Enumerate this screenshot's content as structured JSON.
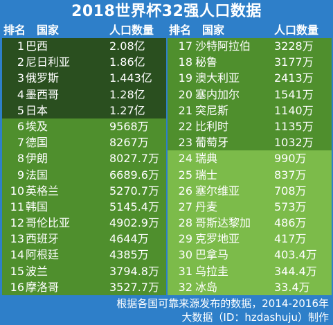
{
  "title": "2018世界杯32强人口数据",
  "headers": {
    "rank": "排名",
    "country": "国家",
    "population": "人口数量"
  },
  "left_rows": [
    {
      "rank": "1",
      "country": "巴西",
      "population": "2.08亿",
      "tier": 1
    },
    {
      "rank": "2",
      "country": "尼日利亚",
      "population": "1.86亿",
      "tier": 1
    },
    {
      "rank": "3",
      "country": "俄罗斯",
      "population": "1.443亿",
      "tier": 1
    },
    {
      "rank": "4",
      "country": "墨西哥",
      "population": "1.28亿",
      "tier": 1
    },
    {
      "rank": "5",
      "country": "日本",
      "population": "1.27亿",
      "tier": 1
    },
    {
      "rank": "6",
      "country": "埃及",
      "population": "9568万",
      "tier": 2
    },
    {
      "rank": "7",
      "country": "德国",
      "population": "8267万",
      "tier": 2
    },
    {
      "rank": "8",
      "country": "伊朗",
      "population": "8027.7万",
      "tier": 2
    },
    {
      "rank": "9",
      "country": "法国",
      "population": "6689.6万",
      "tier": 2
    },
    {
      "rank": "10",
      "country": "英格兰",
      "population": "5270.7万",
      "tier": 2
    },
    {
      "rank": "11",
      "country": "韩国",
      "population": "5145.4万",
      "tier": 2
    },
    {
      "rank": "12",
      "country": "哥伦比亚",
      "population": "4902.9万",
      "tier": 2
    },
    {
      "rank": "13",
      "country": "西班牙",
      "population": "4644万",
      "tier": 2
    },
    {
      "rank": "14",
      "country": "阿根廷",
      "population": "4385万",
      "tier": 2
    },
    {
      "rank": "15",
      "country": "波兰",
      "population": "3794.8万",
      "tier": 2
    },
    {
      "rank": "16",
      "country": "摩洛哥",
      "population": "3527.7万",
      "tier": 2
    }
  ],
  "right_rows": [
    {
      "rank": "17",
      "country": "沙特阿拉伯",
      "population": "3228万",
      "tier": 2
    },
    {
      "rank": "18",
      "country": "秘鲁",
      "population": "3177万",
      "tier": 2
    },
    {
      "rank": "19",
      "country": "澳大利亚",
      "population": "2413万",
      "tier": 2
    },
    {
      "rank": "20",
      "country": "塞内加尔",
      "population": "1541万",
      "tier": 2
    },
    {
      "rank": "21",
      "country": "突尼斯",
      "population": "1140万",
      "tier": 2
    },
    {
      "rank": "22",
      "country": "比利时",
      "population": "1135万",
      "tier": 2
    },
    {
      "rank": "23",
      "country": "葡萄牙",
      "population": "1032万",
      "tier": 2
    },
    {
      "rank": "24",
      "country": "瑞典",
      "population": "990万",
      "tier": 3
    },
    {
      "rank": "25",
      "country": "瑞士",
      "population": "837万",
      "tier": 3
    },
    {
      "rank": "26",
      "country": "塞尔维亚",
      "population": "708万",
      "tier": 3
    },
    {
      "rank": "27",
      "country": "丹麦",
      "population": "573万",
      "tier": 3
    },
    {
      "rank": "28",
      "country": "哥斯达黎加",
      "population": "486万",
      "tier": 3
    },
    {
      "rank": "29",
      "country": "克罗地亚",
      "population": "417万",
      "tier": 3
    },
    {
      "rank": "30",
      "country": "巴拿马",
      "population": "403.4万",
      "tier": 3
    },
    {
      "rank": "31",
      "country": "乌拉圭",
      "population": "344.4万",
      "tier": 3
    },
    {
      "rank": "32",
      "country": "冰岛",
      "population": "33.4万",
      "tier": 3
    }
  ],
  "footer": {
    "line1": "根据各国可靠来源发布的数据，2014-2016年",
    "line2": "大数据（ID：hzdashuju）制作"
  },
  "colors": {
    "background": "#2e7fc9",
    "tier1": "#2a4f1f",
    "tier2": "#4f8f2d",
    "tier3": "#7cbb4a"
  }
}
